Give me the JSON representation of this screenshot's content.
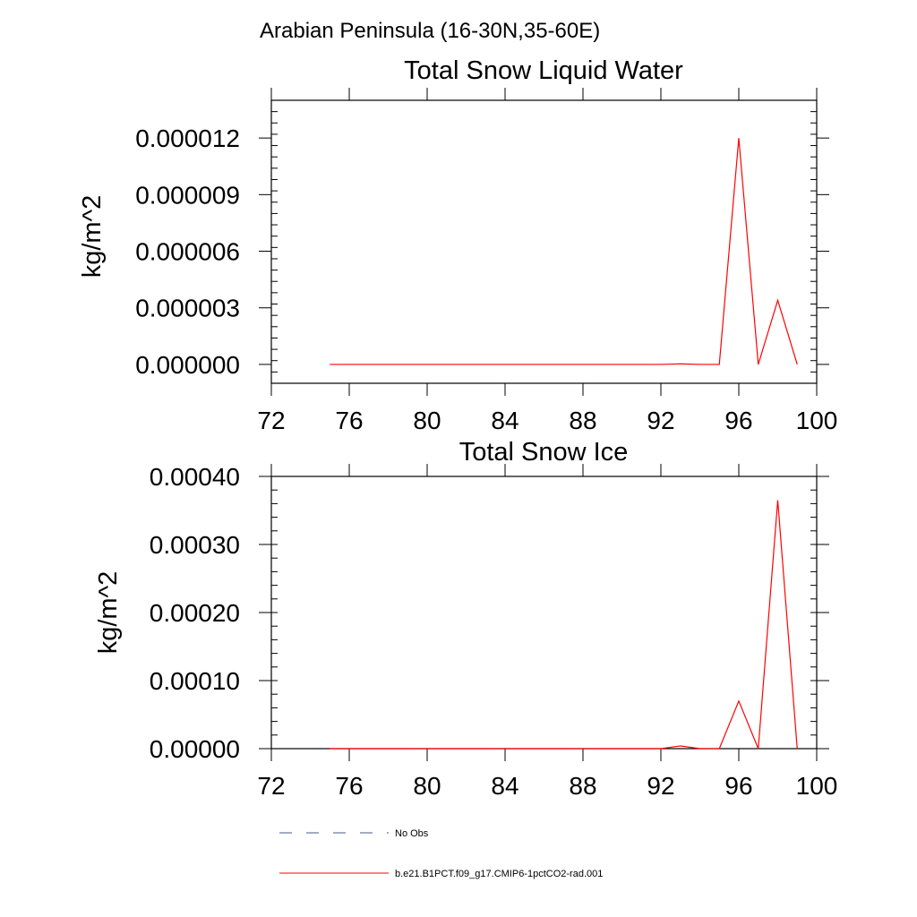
{
  "figure": {
    "region_title": "Arabian Peninsula (16-30N,35-60E)"
  },
  "chart_data": [
    {
      "type": "line",
      "title": "Total Snow Liquid Water",
      "xlabel": "",
      "ylabel": "kg/m^2",
      "xlim": [
        72,
        100
      ],
      "ylim": [
        -1e-06,
        1.4e-05
      ],
      "x_ticks": [
        72,
        76,
        80,
        84,
        88,
        92,
        96,
        100
      ],
      "x_tick_labels": [
        "72",
        "76",
        "80",
        "84",
        "88",
        "92",
        "96",
        "100"
      ],
      "y_ticks": [
        0,
        3e-06,
        6e-06,
        9e-06,
        1.2e-05
      ],
      "y_tick_labels": [
        "0.000000",
        "0.000003",
        "0.000006",
        "0.000009",
        "0.000012"
      ],
      "grid": false,
      "series": [
        {
          "name": "b.e21.B1PCT.f09_g17.CMIP6-1pctCO2-rad.001",
          "color": "#ff0000",
          "x": [
            75,
            76,
            77,
            78,
            79,
            80,
            81,
            82,
            83,
            84,
            85,
            86,
            87,
            88,
            89,
            90,
            91,
            92,
            93,
            94,
            95,
            96,
            97,
            98,
            99
          ],
          "values": [
            0,
            0,
            0,
            0,
            0,
            0,
            0,
            0,
            0,
            0,
            0,
            0,
            0,
            0,
            0,
            0,
            0,
            0,
            3e-08,
            0,
            0,
            1.2e-05,
            0,
            3.4e-06,
            0
          ]
        }
      ]
    },
    {
      "type": "line",
      "title": "Total Snow Ice",
      "xlabel": "",
      "ylabel": "kg/m^2",
      "xlim": [
        72,
        100
      ],
      "ylim": [
        0,
        0.0004
      ],
      "x_ticks": [
        72,
        76,
        80,
        84,
        88,
        92,
        96,
        100
      ],
      "x_tick_labels": [
        "72",
        "76",
        "80",
        "84",
        "88",
        "92",
        "96",
        "100"
      ],
      "y_ticks": [
        0,
        0.0001,
        0.0002,
        0.0003,
        0.0004
      ],
      "y_tick_labels": [
        "0.00000",
        "0.00010",
        "0.00020",
        "0.00030",
        "0.00040"
      ],
      "grid": false,
      "series": [
        {
          "name": "b.e21.B1PCT.f09_g17.CMIP6-1pctCO2-rad.001",
          "color": "#ff0000",
          "x": [
            75,
            76,
            77,
            78,
            79,
            80,
            81,
            82,
            83,
            84,
            85,
            86,
            87,
            88,
            89,
            90,
            91,
            92,
            93,
            94,
            95,
            96,
            97,
            98,
            99
          ],
          "values": [
            0,
            0,
            0,
            0,
            0,
            0,
            0,
            0,
            0,
            0,
            0,
            0,
            0,
            0,
            0,
            0,
            0,
            0,
            4e-06,
            0,
            0,
            7e-05,
            0,
            0.000365,
            0
          ]
        }
      ]
    }
  ],
  "legend": {
    "placement": "bottom-left",
    "entries": [
      {
        "label": "No Obs",
        "color": "#4a5a8a",
        "style": "dashed"
      },
      {
        "label": "b.e21.B1PCT.f09_g17.CMIP6-1pctCO2-rad.001",
        "color": "#ff0000",
        "style": "solid"
      }
    ]
  }
}
